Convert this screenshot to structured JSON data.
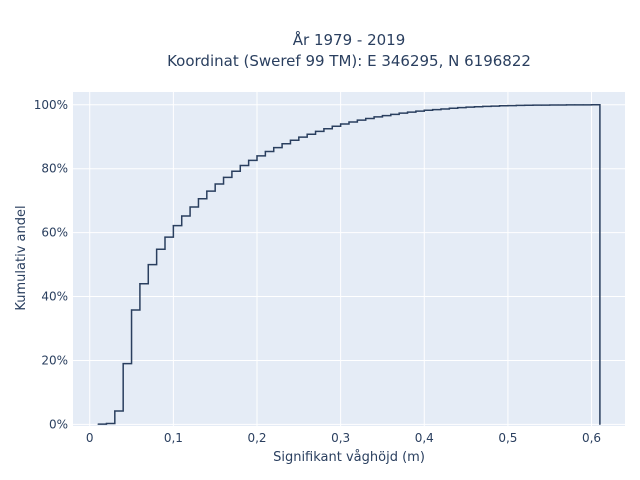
{
  "chart_data": {
    "type": "line",
    "subtype": "ecdf-step",
    "title_lines": [
      "År 1979 - 2019",
      "Koordinat (Sweref 99 TM): E 346295, N 6196822"
    ],
    "xlabel": "Signifikant våghöjd (m)",
    "ylabel": "Kumulativ andel",
    "xlim": [
      -0.02,
      0.64
    ],
    "ylim": [
      -0.5,
      104
    ],
    "x_ticks": [
      0,
      0.1,
      0.2,
      0.3,
      0.4,
      0.5,
      0.6
    ],
    "x_tick_labels": [
      "0",
      "0,1",
      "0,2",
      "0,3",
      "0,4",
      "0,5",
      "0,6"
    ],
    "y_ticks": [
      0,
      20,
      40,
      60,
      80,
      100
    ],
    "y_tick_labels": [
      "0%",
      "20%",
      "40%",
      "60%",
      "80%",
      "100%"
    ],
    "grid": true,
    "series": [
      {
        "x": [
          0.01,
          0.02,
          0.03,
          0.04,
          0.05,
          0.06,
          0.07,
          0.08,
          0.09,
          0.1,
          0.11,
          0.12,
          0.13,
          0.14,
          0.15,
          0.16,
          0.17,
          0.18,
          0.19,
          0.2,
          0.21,
          0.22,
          0.23,
          0.24,
          0.25,
          0.26,
          0.27,
          0.28,
          0.29,
          0.3,
          0.31,
          0.32,
          0.33,
          0.34,
          0.35,
          0.36,
          0.37,
          0.38,
          0.39,
          0.4,
          0.41,
          0.42,
          0.43,
          0.44,
          0.45,
          0.46,
          0.47,
          0.48,
          0.49,
          0.5,
          0.51,
          0.52,
          0.53,
          0.54,
          0.55,
          0.56,
          0.57,
          0.58,
          0.59,
          0.6,
          0.61
        ],
        "y": [
          0.1,
          0.3,
          4.2,
          19.0,
          35.8,
          44.0,
          50.0,
          54.8,
          58.6,
          62.2,
          65.2,
          68.0,
          70.6,
          73.0,
          75.2,
          77.3,
          79.2,
          81.0,
          82.6,
          84.0,
          85.4,
          86.6,
          87.8,
          88.9,
          89.9,
          90.8,
          91.7,
          92.5,
          93.3,
          94.0,
          94.6,
          95.2,
          95.7,
          96.2,
          96.6,
          97.0,
          97.4,
          97.7,
          98.0,
          98.3,
          98.5,
          98.7,
          98.9,
          99.1,
          99.25,
          99.4,
          99.5,
          99.6,
          99.7,
          99.75,
          99.8,
          99.85,
          99.88,
          99.9,
          99.92,
          99.95,
          99.97,
          99.98,
          99.99,
          100.0,
          0.0
        ],
        "color": "#2a3f5f"
      }
    ]
  }
}
